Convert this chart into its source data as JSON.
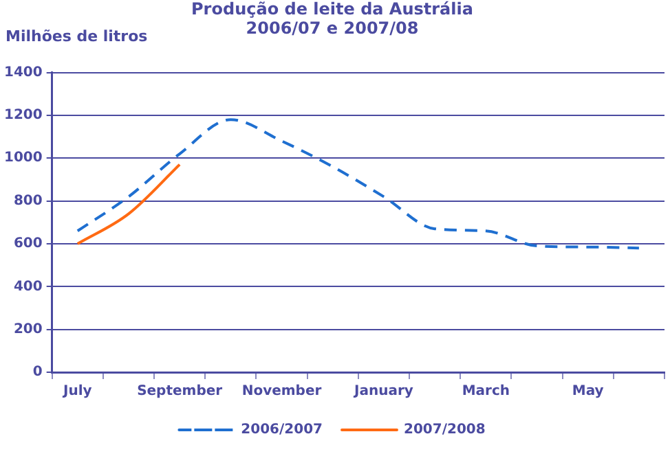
{
  "chart_data": {
    "type": "line",
    "title": "Produção de leite da Austrália",
    "subtitle": "2006/07 e 2007/08",
    "ylabel": "Milhões de litros",
    "categories": [
      "July",
      null,
      "September",
      null,
      "November",
      null,
      "January",
      null,
      "March",
      null,
      "May",
      null
    ],
    "series": [
      {
        "name": "2006/2007",
        "color": "#1f6fd0",
        "line_style": "dashed",
        "values": [
          660,
          820,
          1020,
          1180,
          1080,
          960,
          820,
          670,
          660,
          590,
          585,
          580
        ]
      },
      {
        "name": "2007/2008",
        "color": "#ff6a13",
        "line_style": "solid",
        "values": [
          600,
          740,
          970,
          null,
          null,
          null,
          null,
          null,
          null,
          null,
          null,
          null
        ]
      }
    ],
    "ylim": [
      0,
      1400
    ],
    "yticks": [
      0,
      200,
      400,
      600,
      800,
      1000,
      1200,
      1400
    ],
    "grid": "y",
    "legend": "bottom",
    "marker": "none"
  }
}
